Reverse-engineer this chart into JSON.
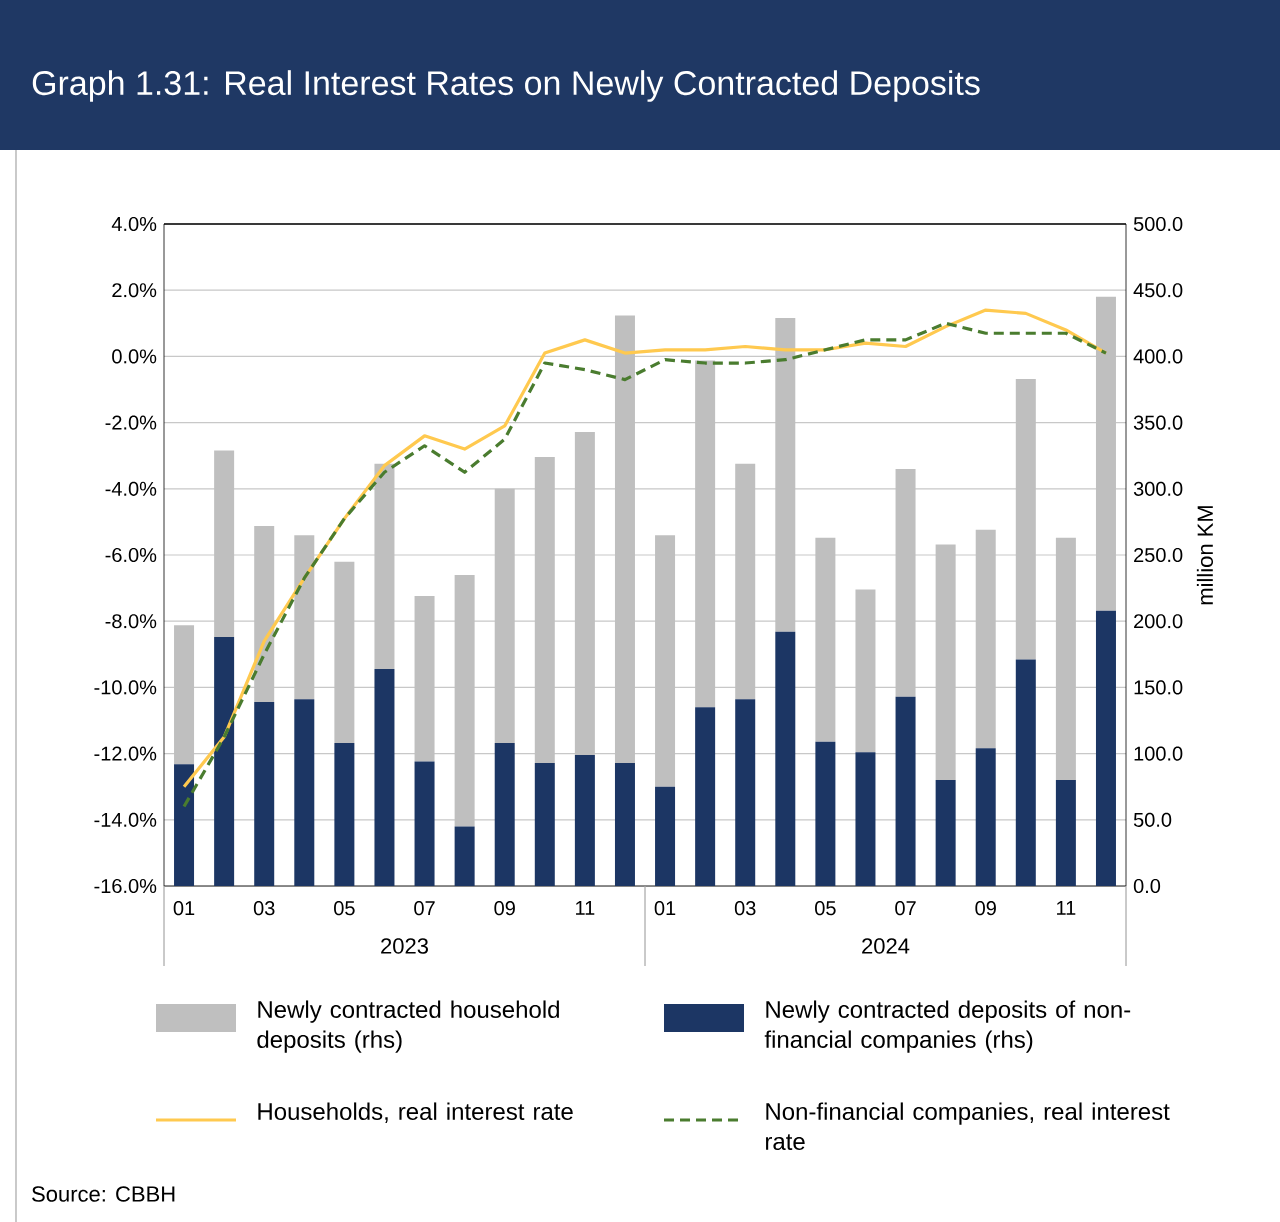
{
  "chart_data": {
    "type": "bar",
    "title": "Graph 1.31: Real Interest Rates on Newly Contracted Deposits",
    "categories": [
      "01",
      null,
      "03",
      null,
      "05",
      null,
      "07",
      null,
      "09",
      null,
      "11",
      null,
      "01",
      null,
      "03",
      null,
      "05",
      null,
      "07",
      null,
      "09",
      null,
      "11",
      null
    ],
    "stacked": true,
    "series": [
      {
        "name": "Newly contracted deposits of non-financial companies (rhs)",
        "axis": "y2",
        "color": "#1c3664",
        "values": [
          92,
          188,
          139,
          141,
          108,
          164,
          94,
          45,
          108,
          93,
          99,
          93,
          75,
          135,
          141,
          192,
          109,
          101,
          143,
          80,
          104,
          171,
          80,
          208
        ]
      },
      {
        "name": "Newly contracted household deposits (rhs)",
        "axis": "y2",
        "color": "#bfbfbf",
        "values": [
          105,
          141,
          133,
          124,
          137,
          155,
          125,
          190,
          192,
          231,
          244,
          338,
          190,
          262,
          178,
          237,
          154,
          123,
          172,
          178,
          165,
          212,
          183,
          237
        ]
      },
      {
        "name": "Households, real interest rate",
        "type": "line",
        "color": "#ffc94f",
        "line_style": "solid",
        "values": [
          -13.0,
          -11.5,
          -8.6,
          -6.7,
          -4.9,
          -3.3,
          -2.4,
          -2.8,
          -2.1,
          0.1,
          0.5,
          0.1,
          0.2,
          0.2,
          0.3,
          0.2,
          0.2,
          0.4,
          0.3,
          0.9,
          1.4,
          1.3,
          0.8,
          0.1
        ]
      },
      {
        "name": "Non-financial companies, real interest rate",
        "type": "line",
        "color": "#4a7c2f",
        "line_style": "dashed",
        "values": [
          -13.6,
          -11.5,
          -9.0,
          -6.7,
          -4.9,
          -3.5,
          -2.7,
          -3.5,
          -2.5,
          -0.2,
          -0.4,
          -0.7,
          -0.1,
          -0.2,
          -0.2,
          -0.1,
          0.2,
          0.5,
          0.5,
          1.0,
          0.7,
          0.7,
          0.7,
          0.1
        ]
      }
    ],
    "ylim": [
      -16,
      4
    ],
    "yticks": [
      {
        "value": -16,
        "label": "-16.0%"
      },
      {
        "value": -14,
        "label": "-14.0%"
      },
      {
        "value": -12,
        "label": "-12.0%"
      },
      {
        "value": -10,
        "label": "-10.0%"
      },
      {
        "value": -8,
        "label": "-8.0%"
      },
      {
        "value": -6,
        "label": "-6.0%"
      },
      {
        "value": -4,
        "label": "-4.0%"
      },
      {
        "value": -2,
        "label": "-2.0%"
      },
      {
        "value": 0,
        "label": "0.0%"
      },
      {
        "value": 2,
        "label": "2.0%"
      },
      {
        "value": 4,
        "label": "4.0%"
      }
    ],
    "y2lim": [
      0,
      500
    ],
    "y2ticks": [
      {
        "value": 0,
        "label": "0.0"
      },
      {
        "value": 50,
        "label": "50.0"
      },
      {
        "value": 100,
        "label": "100.0"
      },
      {
        "value": 150,
        "label": "150.0"
      },
      {
        "value": 200,
        "label": "200.0"
      },
      {
        "value": 250,
        "label": "250.0"
      },
      {
        "value": 300,
        "label": "300.0"
      },
      {
        "value": 350,
        "label": "350.0"
      },
      {
        "value": 400,
        "label": "400.0"
      },
      {
        "value": 450,
        "label": "450.0"
      },
      {
        "value": 500,
        "label": "500.0"
      }
    ],
    "y2label": "million KM",
    "grid": "y",
    "legend": "bottom",
    "annotations": [
      "2023",
      "2024",
      "Source: CBBH"
    ]
  }
}
